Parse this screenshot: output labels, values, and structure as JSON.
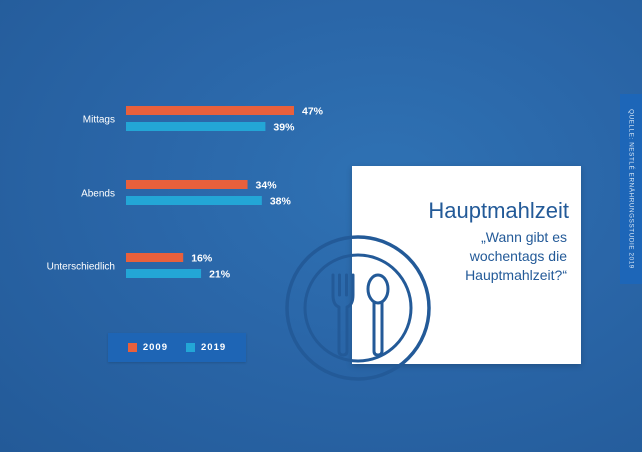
{
  "card": {
    "title": "Hauptmahlzeit",
    "question": "„Wann gibt es wochentags die Hauptmahlzeit?“"
  },
  "source": "QUELLE: NESTLÉ ERNÄHRUNGSSTUDIE 2019",
  "colors": {
    "series_2009": "#e8603c",
    "series_2019": "#23a6d6",
    "background": "#2a66a8",
    "card_text": "#235a98"
  },
  "icons": [
    "plate-icon",
    "fork-icon",
    "spoon-icon"
  ],
  "chart_data": {
    "type": "bar",
    "orientation": "horizontal",
    "categories": [
      "Mittags",
      "Abends",
      "Unterschiedlich"
    ],
    "series": [
      {
        "name": "2009",
        "values": [
          47,
          34,
          16
        ],
        "labels": [
          "47%",
          "34%",
          "16%"
        ],
        "color": "#e8603c"
      },
      {
        "name": "2019",
        "values": [
          39,
          38,
          21
        ],
        "labels": [
          "39%",
          "38%",
          "21%"
        ],
        "color": "#23a6d6"
      }
    ],
    "title": "",
    "xlabel": "",
    "ylabel": "",
    "xlim": [
      0,
      50
    ],
    "unit": "%",
    "grid": false,
    "legend_position": "bottom"
  }
}
